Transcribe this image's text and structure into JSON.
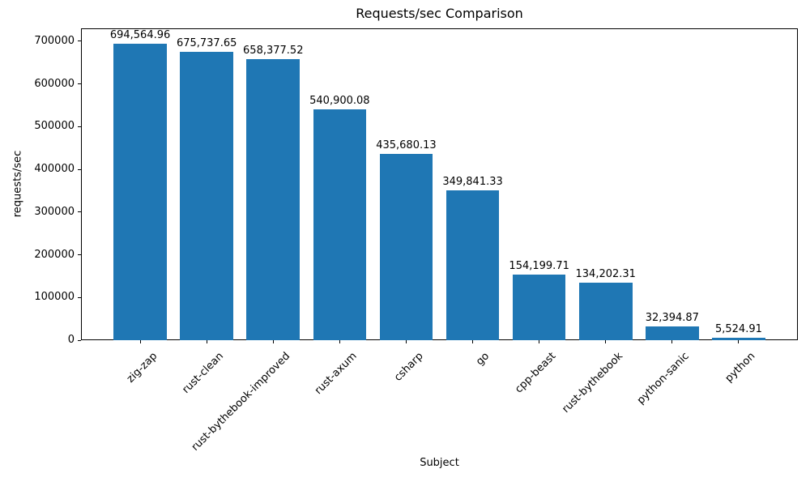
{
  "chart_data": {
    "type": "bar",
    "title": "Requests/sec Comparison",
    "xlabel": "Subject",
    "ylabel": "requests/sec",
    "categories": [
      "zig-zap",
      "rust-clean",
      "rust-bythebook-improved",
      "rust-axum",
      "csharp",
      "go",
      "cpp-beast",
      "rust-bythebook",
      "python-sanic",
      "python"
    ],
    "values": [
      694564.96,
      675737.65,
      658377.52,
      540900.08,
      435680.13,
      349841.33,
      154199.71,
      134202.31,
      32394.87,
      5524.91
    ],
    "value_labels": [
      "694,564.96",
      "675,737.65",
      "658,377.52",
      "540,900.08",
      "435,680.13",
      "349,841.33",
      "154,199.71",
      "134,202.31",
      "32,394.87",
      "5,524.91"
    ],
    "yticks": [
      0,
      100000,
      200000,
      300000,
      400000,
      500000,
      600000,
      700000
    ],
    "ytick_labels": [
      "0",
      "100000",
      "200000",
      "300000",
      "400000",
      "500000",
      "600000",
      "700000"
    ],
    "ylim": [
      0,
      730000
    ],
    "bar_color": "#1f77b4",
    "axis_color": "#000000",
    "text_color": "#000000",
    "background_color": "#ffffff",
    "grid": false,
    "legend": null,
    "x_tick_rotation_deg": 45
  }
}
